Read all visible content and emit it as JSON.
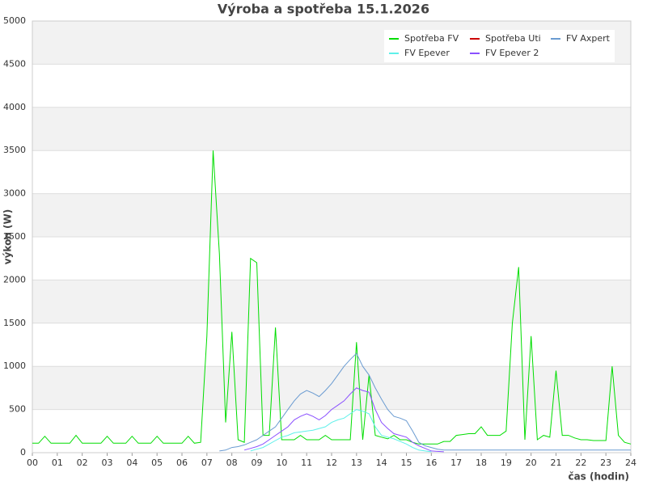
{
  "chart_data": {
    "type": "line",
    "title": "Výroba a spotřeba 15.1.2026",
    "x_label": "čas (hodin)",
    "y_label": "výkon (W)",
    "xlim": [
      0,
      24
    ],
    "ylim": [
      0,
      5000
    ],
    "xticks": [
      {
        "value": 0,
        "label": "00"
      },
      {
        "value": 1,
        "label": "01"
      },
      {
        "value": 2,
        "label": "02"
      },
      {
        "value": 3,
        "label": "03"
      },
      {
        "value": 4,
        "label": "04"
      },
      {
        "value": 5,
        "label": "05"
      },
      {
        "value": 6,
        "label": "06"
      },
      {
        "value": 7,
        "label": "07"
      },
      {
        "value": 8,
        "label": "08"
      },
      {
        "value": 9,
        "label": "09"
      },
      10,
      11,
      12,
      13,
      14,
      15,
      16,
      17,
      18,
      19,
      20,
      21,
      22,
      23,
      24
    ],
    "yticks": [
      0,
      500,
      1000,
      1500,
      2000,
      2500,
      3000,
      3500,
      4000,
      4500,
      5000
    ],
    "grid": true,
    "legend": "top-right",
    "x": [
      0,
      0.25,
      0.5,
      0.75,
      1,
      1.25,
      1.5,
      1.75,
      2,
      2.25,
      2.5,
      2.75,
      3,
      3.25,
      3.5,
      3.75,
      4,
      4.25,
      4.5,
      4.75,
      5,
      5.25,
      5.5,
      5.75,
      6,
      6.25,
      6.5,
      6.75,
      7,
      7.25,
      7.5,
      7.75,
      8,
      8.25,
      8.5,
      8.75,
      9,
      9.25,
      9.5,
      9.75,
      10,
      10.25,
      10.5,
      10.75,
      11,
      11.25,
      11.5,
      11.75,
      12,
      12.25,
      12.5,
      12.75,
      13,
      13.25,
      13.5,
      13.75,
      14,
      14.25,
      14.5,
      14.75,
      15,
      15.25,
      15.5,
      15.75,
      16,
      16.25,
      16.5,
      16.75,
      17,
      17.25,
      17.5,
      17.75,
      18,
      18.25,
      18.5,
      18.75,
      19,
      19.25,
      19.5,
      19.75,
      20,
      20.25,
      20.5,
      20.75,
      21,
      21.25,
      21.5,
      21.75,
      22,
      22.25,
      22.5,
      22.75,
      23,
      23.25,
      23.5,
      23.75,
      24
    ],
    "series": [
      {
        "name": "Spotřeba FV",
        "color": "#00dd00",
        "values": [
          110,
          110,
          190,
          110,
          110,
          110,
          110,
          200,
          110,
          110,
          110,
          110,
          190,
          110,
          110,
          110,
          190,
          110,
          110,
          110,
          190,
          110,
          110,
          110,
          110,
          190,
          110,
          120,
          1350,
          3500,
          2300,
          350,
          1400,
          150,
          120,
          2250,
          2200,
          200,
          200,
          1450,
          150,
          150,
          150,
          200,
          150,
          150,
          150,
          200,
          150,
          150,
          150,
          150,
          1280,
          150,
          900,
          200,
          180,
          160,
          200,
          150,
          150,
          120,
          100,
          100,
          100,
          100,
          130,
          130,
          200,
          210,
          220,
          220,
          300,
          200,
          200,
          200,
          250,
          1500,
          2150,
          150,
          1350,
          150,
          200,
          180,
          950,
          200,
          200,
          170,
          150,
          150,
          140,
          140,
          140,
          1000,
          200,
          120,
          100
        ]
      },
      {
        "name": "Spotřeba Uti",
        "color": "#cc0000",
        "values": [
          null,
          null,
          null,
          null,
          null,
          null,
          null,
          null,
          null,
          null,
          null,
          null,
          null,
          null,
          null,
          null,
          null,
          null,
          null,
          null,
          null,
          null,
          null,
          null,
          null,
          null,
          null,
          null,
          null,
          null,
          null,
          null,
          null,
          null,
          null,
          null,
          null,
          null,
          null,
          null,
          null,
          null,
          null,
          null,
          null,
          null,
          null,
          null,
          null,
          null,
          null,
          null,
          null,
          null,
          null,
          null,
          null,
          null,
          null,
          null,
          null,
          null,
          null,
          null,
          null,
          null,
          null,
          null,
          null,
          null,
          null,
          null,
          null,
          null,
          null,
          null,
          null,
          null,
          null,
          null,
          null,
          null,
          null,
          null,
          null,
          null,
          null,
          null,
          null,
          null,
          null,
          null,
          null,
          null,
          null,
          null,
          null
        ]
      },
      {
        "name": "FV Axpert",
        "color": "#6a9bd1",
        "values": [
          null,
          null,
          null,
          null,
          null,
          null,
          null,
          null,
          null,
          null,
          null,
          null,
          null,
          null,
          null,
          null,
          null,
          null,
          null,
          null,
          null,
          null,
          null,
          null,
          null,
          null,
          null,
          null,
          null,
          null,
          20,
          30,
          60,
          70,
          90,
          120,
          150,
          200,
          250,
          300,
          400,
          500,
          600,
          680,
          720,
          690,
          650,
          720,
          800,
          900,
          1000,
          1080,
          1150,
          1000,
          900,
          750,
          620,
          500,
          420,
          400,
          370,
          250,
          120,
          80,
          60,
          40,
          30,
          30,
          30,
          30,
          30,
          30,
          30,
          30,
          30,
          30,
          30,
          30,
          30,
          30,
          30,
          30,
          30,
          30,
          30,
          30,
          30,
          30,
          30,
          30,
          30,
          30,
          30,
          30,
          30,
          30,
          30
        ]
      },
      {
        "name": "FV Epever",
        "color": "#5ef0ea",
        "values": [
          null,
          null,
          null,
          null,
          null,
          null,
          null,
          null,
          null,
          null,
          null,
          null,
          null,
          null,
          null,
          null,
          null,
          null,
          null,
          null,
          null,
          null,
          null,
          null,
          null,
          null,
          null,
          null,
          null,
          null,
          null,
          null,
          null,
          null,
          null,
          20,
          40,
          60,
          100,
          140,
          180,
          200,
          230,
          240,
          250,
          260,
          280,
          300,
          350,
          380,
          400,
          450,
          500,
          480,
          450,
          300,
          200,
          180,
          160,
          130,
          100,
          60,
          30,
          20,
          10,
          null,
          null,
          null,
          null,
          null,
          null,
          null,
          null,
          null,
          null,
          null,
          null,
          null,
          null,
          null,
          null,
          null,
          null,
          null,
          null,
          null,
          null,
          null,
          null,
          null,
          null,
          null,
          null,
          null,
          null,
          null,
          null
        ]
      },
      {
        "name": "FV Epever 2",
        "color": "#8a50ff",
        "values": [
          null,
          null,
          null,
          null,
          null,
          null,
          null,
          null,
          null,
          null,
          null,
          null,
          null,
          null,
          null,
          null,
          null,
          null,
          null,
          null,
          null,
          null,
          null,
          null,
          null,
          null,
          null,
          null,
          null,
          null,
          null,
          null,
          null,
          null,
          30,
          50,
          70,
          100,
          150,
          200,
          250,
          300,
          380,
          420,
          450,
          420,
          380,
          430,
          500,
          550,
          600,
          680,
          750,
          720,
          700,
          500,
          350,
          280,
          220,
          200,
          180,
          120,
          80,
          50,
          20,
          15,
          10,
          null,
          null,
          null,
          null,
          null,
          null,
          null,
          null,
          null,
          null,
          null,
          null,
          null,
          null,
          null,
          null,
          null,
          null,
          null,
          null,
          null,
          null,
          null,
          null,
          null,
          null,
          null,
          null,
          null,
          null
        ]
      }
    ]
  }
}
